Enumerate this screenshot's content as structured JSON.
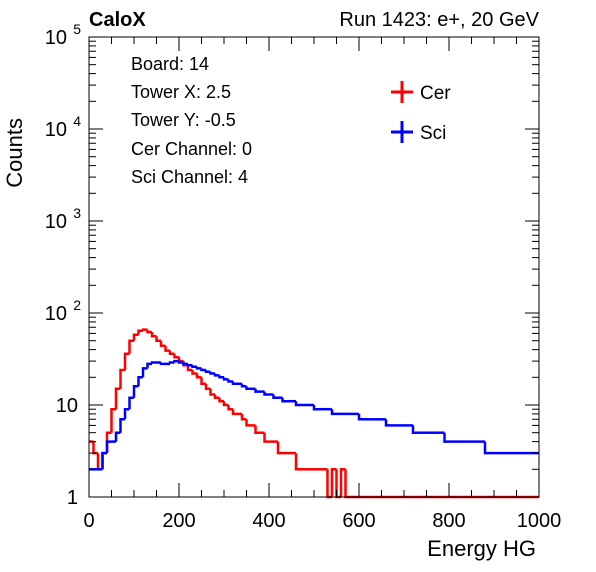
{
  "header": {
    "experiment": "CaloX",
    "run_label": "Run 1423: e+, 20 GeV"
  },
  "info_box": [
    "Board: 14",
    "Tower X: 2.5",
    "Tower Y: -0.5",
    "Cer Channel: 0",
    "Sci Channel: 4"
  ],
  "colors": {
    "cer": "#ff0000",
    "sci": "#0000ff"
  },
  "chart_data": {
    "type": "line",
    "xlabel": "Energy HG",
    "ylabel": "Counts",
    "xlim": [
      0,
      1000
    ],
    "ylim": [
      1,
      100000
    ],
    "y_scale": "log",
    "x_ticks": [
      "0",
      "200",
      "400",
      "600",
      "800",
      "1000"
    ],
    "y_ticks": [
      "1",
      "10",
      "10^2",
      "10^3",
      "10^4",
      "10^5"
    ],
    "grid": false,
    "legend_position": "top-right",
    "bin_width": 10,
    "x": [
      5,
      15,
      25,
      35,
      45,
      55,
      65,
      75,
      85,
      95,
      105,
      115,
      125,
      135,
      145,
      155,
      165,
      175,
      185,
      195,
      205,
      215,
      225,
      235,
      245,
      255,
      265,
      275,
      285,
      295,
      305,
      315,
      325,
      335,
      345,
      355,
      365,
      375,
      385,
      395,
      405,
      415,
      425,
      435,
      445,
      455,
      465,
      475,
      485,
      495,
      505,
      515,
      525,
      535,
      545,
      555,
      565,
      575,
      585,
      595,
      605,
      615,
      625,
      635,
      645,
      655,
      665,
      675,
      685,
      695,
      705,
      715,
      725,
      735,
      745,
      755,
      765,
      775,
      785,
      795,
      805,
      815,
      825,
      835,
      845,
      855,
      865,
      875,
      885,
      895,
      905,
      915,
      925,
      935,
      945,
      955,
      965,
      975,
      985,
      995
    ],
    "series": [
      {
        "name": "Cer",
        "color": "#ff0000",
        "values": [
          4,
          3,
          2,
          3,
          5,
          9,
          15,
          24,
          36,
          50,
          58,
          64,
          66,
          62,
          56,
          50,
          44,
          39,
          36,
          33,
          30,
          27,
          24,
          22,
          20,
          17,
          15,
          13,
          12,
          11,
          10,
          9,
          8,
          8,
          7,
          6,
          6,
          5,
          5,
          4,
          4,
          4,
          3,
          3,
          3,
          3,
          2,
          2,
          2,
          2,
          2,
          2,
          2,
          1,
          2,
          1,
          2,
          1,
          1,
          1,
          1,
          1,
          1,
          1,
          1,
          1,
          1,
          1,
          1,
          1,
          1,
          1,
          1,
          1,
          1,
          1,
          1,
          1,
          1,
          1,
          1,
          1,
          1,
          1,
          1,
          1,
          1,
          1,
          1,
          1,
          1,
          1,
          1,
          1,
          1,
          1,
          1,
          1,
          1,
          1
        ]
      },
      {
        "name": "Sci",
        "color": "#0000ff",
        "values": [
          2,
          2,
          2,
          3,
          4,
          4,
          5,
          7,
          9,
          12,
          16,
          20,
          25,
          28,
          29,
          29,
          28,
          28,
          29,
          30,
          29,
          28,
          27,
          26,
          25,
          24,
          23,
          22,
          21,
          20,
          19,
          18,
          17,
          17,
          16,
          15,
          15,
          14,
          14,
          13,
          13,
          12,
          12,
          11,
          11,
          11,
          10,
          10,
          10,
          10,
          9,
          9,
          9,
          9,
          8,
          8,
          8,
          8,
          8,
          8,
          7,
          7,
          7,
          7,
          7,
          7,
          6,
          6,
          6,
          6,
          6,
          6,
          5,
          5,
          5,
          5,
          5,
          5,
          5,
          4,
          4,
          4,
          4,
          4,
          4,
          4,
          4,
          4,
          3,
          3,
          3,
          3,
          3,
          3,
          3,
          3,
          3,
          3,
          3,
          3
        ]
      }
    ]
  }
}
